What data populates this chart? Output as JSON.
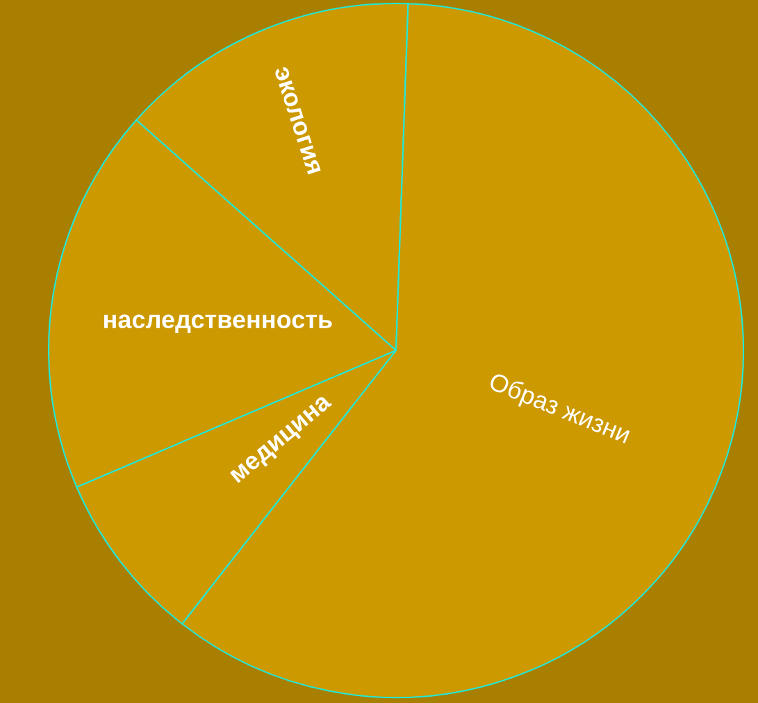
{
  "chart_data": {
    "type": "pie",
    "categories": [
      "экология",
      "наследственность",
      "медицина",
      "Образ жизни"
    ],
    "values": [
      14,
      18,
      8,
      60
    ],
    "colors": [
      "#cc9900",
      "#cc9900",
      "#cc9900",
      "#cc9900"
    ],
    "legend": false
  }
}
